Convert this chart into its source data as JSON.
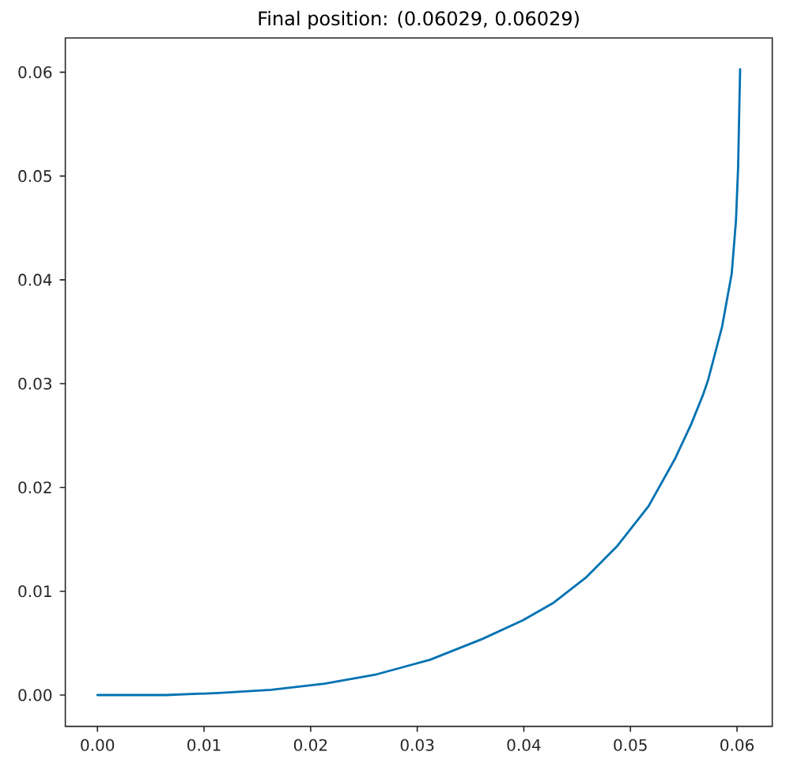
{
  "chart_data": {
    "type": "line",
    "title": "Final position: (0.06029, 0.06029)",
    "x": [
      0,
      0.0064,
      0.0114,
      0.0163,
      0.0213,
      0.0262,
      0.0312,
      0.0361,
      0.0399,
      0.0428,
      0.0458,
      0.0488,
      0.0517,
      0.0542,
      0.0557,
      0.0568,
      0.0573,
      0.0586,
      0.0595,
      0.0599,
      0.0601,
      0.0602,
      0.06029
    ],
    "values": [
      0,
      0,
      0.0002,
      0.0005,
      0.0011,
      0.002,
      0.0034,
      0.0054,
      0.0072,
      0.0089,
      0.0113,
      0.0144,
      0.0182,
      0.0228,
      0.0261,
      0.0289,
      0.0304,
      0.0355,
      0.0406,
      0.0457,
      0.0508,
      0.0559,
      0.06029
    ],
    "color": "#0072b2",
    "xlim": [
      -0.003015,
      0.063305
    ],
    "ylim": [
      -0.003015,
      0.063305
    ],
    "xticks": [
      {
        "value": 0,
        "label": "0.00"
      },
      0.01,
      0.02,
      0.03,
      0.04,
      0.05,
      0.06
    ],
    "yticks": [
      {
        "value": 0,
        "label": "0.00"
      },
      0.01,
      0.02,
      0.03,
      0.04,
      0.05,
      0.06
    ]
  }
}
